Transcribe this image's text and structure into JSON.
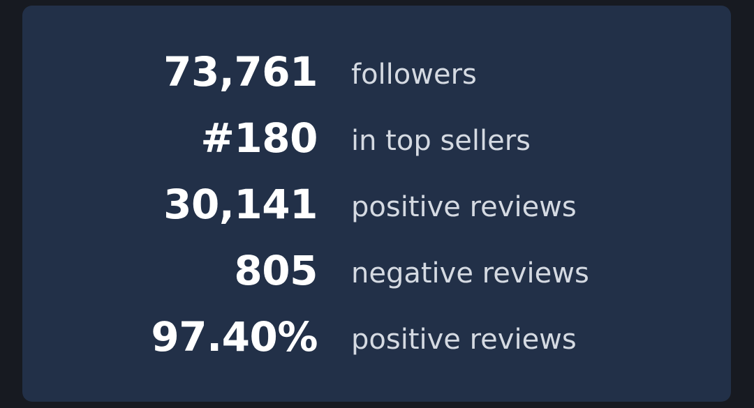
{
  "stats": [
    {
      "value": "73,761",
      "label": "followers"
    },
    {
      "value": "#180",
      "label": "in top sellers"
    },
    {
      "value": "30,141",
      "label": "positive reviews"
    },
    {
      "value": "805",
      "label": "negative reviews"
    },
    {
      "value": "97.40%",
      "label": "positive reviews"
    }
  ]
}
